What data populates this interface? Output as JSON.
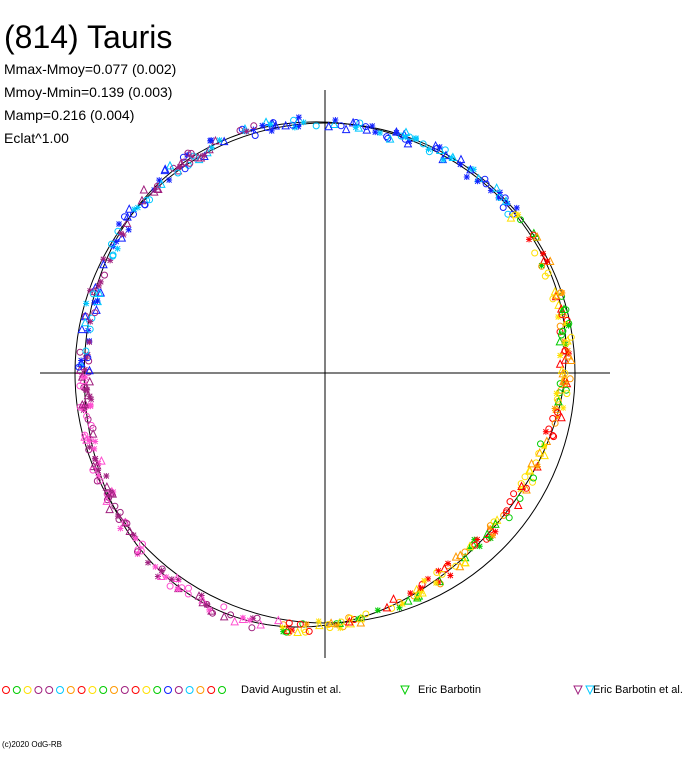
{
  "title": "(814) Tauris",
  "stats": [
    "Mmax-Mmoy=0.077 (0.002)",
    "Mmoy-Mmin=0.139 (0.003)",
    "Mamp=0.216 (0.004)",
    "Eclat^1.00"
  ],
  "legend": [
    {
      "name": "David Augustin et al.",
      "color": "#ff0000"
    },
    {
      "name": "Eric Barbotin",
      "color": "#00cc00"
    },
    {
      "name": "Eric Barbotin et al.",
      "color": "#a0207f"
    }
  ],
  "copyright": "(c)2020 OdG-RB",
  "chart_data": {
    "type": "scatter",
    "description_of_axes": "polar light-curve plot: angle = rotational phase, radius = magnitude-scaled",
    "reference_circle": true,
    "axes_crosshair": true,
    "series_colors": [
      "#ff0000",
      "#00cc00",
      "#a0207f",
      "#ffe000",
      "#ff9900",
      "#00c8ff",
      "#1020ff",
      "#ff4fd0"
    ]
  }
}
